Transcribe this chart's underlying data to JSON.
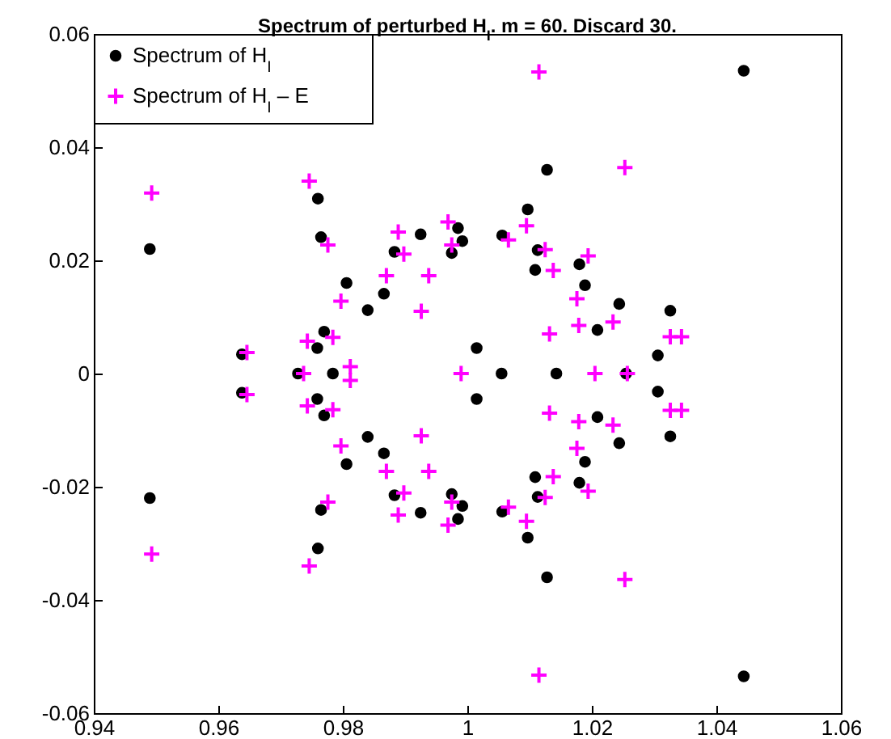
{
  "chart_data": {
    "type": "scatter",
    "title": "Spectrum of perturbed H$_{I}$. m = 60. Discard 30.",
    "legend": "top left",
    "grid": false,
    "xlim": [
      0.94,
      1.06
    ],
    "xticks": [
      0.94,
      0.96,
      0.98,
      1,
      1.02,
      1.04,
      1.06
    ],
    "ylim": [
      -0.06,
      0.06
    ],
    "yticks": [
      -0.06,
      -0.04,
      -0.02,
      0,
      0.02,
      0.04,
      0.06
    ],
    "series": [
      {
        "name": "Spectrum of H$_{I}$",
        "color": "#000000",
        "marker": "circle",
        "x": [
          0.9728,
          0.9784,
          1.0055,
          1.0143,
          1.0255,
          0.949,
          0.949,
          0.9638,
          0.9638,
          0.976,
          0.976,
          0.9765,
          0.9765,
          0.977,
          0.977,
          0.9759,
          0.9759,
          0.9806,
          0.9806,
          0.984,
          0.984,
          0.9866,
          0.9866,
          0.9883,
          0.9883,
          0.9925,
          0.9925,
          0.9985,
          0.9985,
          0.9992,
          0.9992,
          0.9975,
          0.9975,
          1.0015,
          1.0015,
          1.0444,
          1.0444,
          1.0128,
          1.0128,
          1.0097,
          1.0097,
          1.0056,
          1.0056,
          1.0113,
          1.0113,
          1.0109,
          1.0109,
          1.018,
          1.018,
          1.0189,
          1.0189,
          1.0244,
          1.0244,
          1.0326,
          1.0326,
          1.0209,
          1.0209,
          1.0306,
          1.0306
        ],
        "values": [
          0,
          0,
          0,
          0,
          0,
          0.022,
          -0.022,
          0.0034,
          -0.0034,
          0.0309,
          -0.0309,
          0.0241,
          -0.0241,
          0.0074,
          -0.0074,
          0.0045,
          -0.0045,
          0.016,
          -0.016,
          0.0112,
          -0.0112,
          0.0141,
          -0.0141,
          0.0215,
          -0.0215,
          0.0246,
          -0.0246,
          0.0257,
          -0.0257,
          0.0234,
          -0.0234,
          0.0213,
          -0.0213,
          0.0045,
          -0.0045,
          0.0535,
          -0.0535,
          0.036,
          -0.036,
          0.029,
          -0.029,
          0.0244,
          -0.0244,
          0.0218,
          -0.0218,
          0.0183,
          -0.0183,
          0.0193,
          -0.0193,
          0.0156,
          -0.0156,
          0.0123,
          -0.0123,
          0.0111,
          -0.0111,
          0.0077,
          -0.0077,
          0.0032,
          -0.0032
        ]
      },
      {
        "name": "Spectrum of H$_{I}$ – E",
        "color": "#ff00ff",
        "marker": "cross",
        "x": [
          0.9737,
          0.999,
          1.0205,
          1.0257,
          0.9493,
          0.9493,
          0.9646,
          0.9646,
          0.9746,
          0.9746,
          0.9776,
          0.9776,
          0.9743,
          0.9743,
          0.9784,
          0.9784,
          0.9797,
          0.9797,
          0.9812,
          0.9812,
          0.987,
          0.987,
          0.9889,
          0.9889,
          0.9898,
          0.9898,
          0.9926,
          0.9926,
          0.9938,
          0.9938,
          0.9969,
          0.9969,
          0.9975,
          0.9975,
          1.0115,
          1.0115,
          1.0253,
          1.0253,
          1.0095,
          1.0095,
          1.0066,
          1.0066,
          1.0125,
          1.0125,
          1.0138,
          1.0138,
          1.0194,
          1.0194,
          1.0176,
          1.0176,
          1.0179,
          1.0179,
          1.0132,
          1.0132,
          1.0234,
          1.0234,
          1.0326,
          1.0326,
          1.0344,
          1.0344
        ],
        "values": [
          0,
          0,
          0,
          0,
          0.0319,
          -0.0319,
          0.0037,
          -0.0037,
          0.034,
          -0.034,
          0.0227,
          -0.0227,
          0.0057,
          -0.0057,
          0.0064,
          -0.0064,
          0.0128,
          -0.0128,
          0.0012,
          -0.0012,
          0.0173,
          -0.0173,
          0.025,
          -0.025,
          0.0211,
          -0.0211,
          0.011,
          -0.011,
          0.0173,
          -0.0173,
          0.0268,
          -0.0268,
          0.0227,
          -0.0227,
          0.0533,
          -0.0533,
          0.0364,
          -0.0364,
          0.0261,
          -0.0261,
          0.0236,
          -0.0236,
          0.0219,
          -0.0219,
          0.0182,
          -0.0182,
          0.0208,
          -0.0208,
          0.0132,
          -0.0132,
          0.0085,
          -0.0085,
          0.007,
          -0.007,
          0.0091,
          -0.0091,
          0.0065,
          -0.0065,
          0.0065,
          -0.0065
        ]
      }
    ]
  }
}
